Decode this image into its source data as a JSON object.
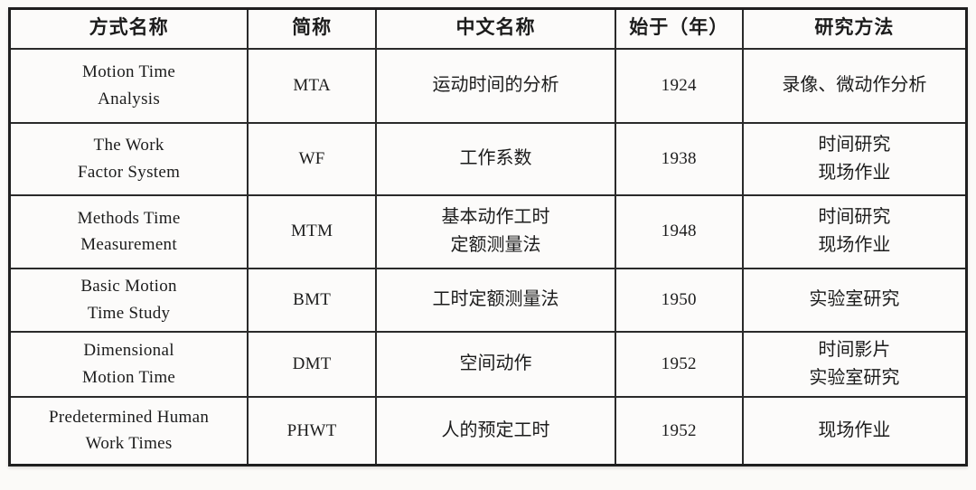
{
  "table": {
    "headers": {
      "method_name": "方式名称",
      "abbreviation": "简称",
      "chinese_name": "中文名称",
      "start_year": "始于（年）",
      "research_method": "研究方法"
    },
    "rows": [
      {
        "method_name": "Motion Time\nAnalysis",
        "abbreviation": "MTA",
        "chinese_name": "运动时间的分析",
        "start_year": "1924",
        "research_method": "录像、微动作分析"
      },
      {
        "method_name": "The Work\nFactor System",
        "abbreviation": "WF",
        "chinese_name": "工作系数",
        "start_year": "1938",
        "research_method": "时间研究\n现场作业"
      },
      {
        "method_name": "Methods Time\nMeasurement",
        "abbreviation": "MTM",
        "chinese_name": "基本动作工时\n定额测量法",
        "start_year": "1948",
        "research_method": "时间研究\n现场作业"
      },
      {
        "method_name": "Basic Motion\nTime Study",
        "abbreviation": "BMT",
        "chinese_name": "工时定额测量法",
        "start_year": "1950",
        "research_method": "实验室研究"
      },
      {
        "method_name": "Dimensional\nMotion Time",
        "abbreviation": "DMT",
        "chinese_name": "空间动作",
        "start_year": "1952",
        "research_method": "时间影片\n实验室研究"
      },
      {
        "method_name": "Predetermined Human\nWork Times",
        "abbreviation": "PHWT",
        "chinese_name": "人的预定工时",
        "start_year": "1952",
        "research_method": "现场作业"
      }
    ]
  }
}
